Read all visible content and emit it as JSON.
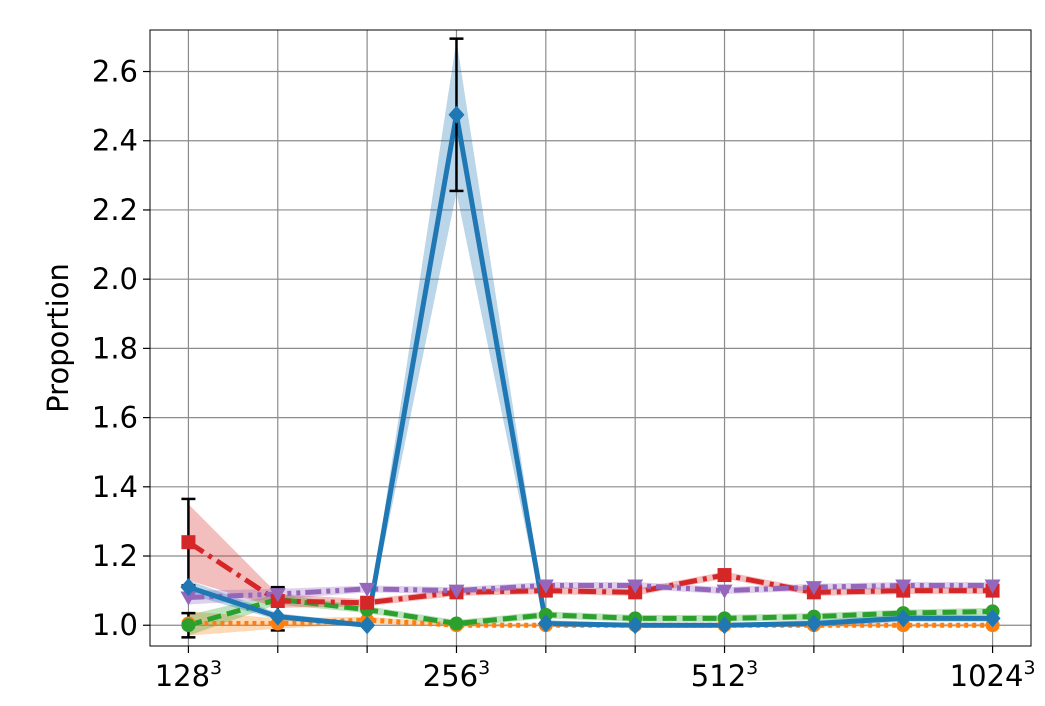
{
  "chart_data": {
    "type": "line",
    "ylabel": "Proportion",
    "ylim": [
      0.94,
      2.72
    ],
    "yticks": [
      1.0,
      1.2,
      1.4,
      1.6,
      1.8,
      2.0,
      2.2,
      2.4,
      2.6
    ],
    "ytick_labels": [
      "1.0",
      "1.2",
      "1.4",
      "1.6",
      "1.8",
      "2.0",
      "2.2",
      "2.4",
      "2.6"
    ],
    "x": [
      0,
      1,
      2,
      3,
      4,
      5,
      6,
      7,
      8,
      9
    ],
    "xlim": [
      -0.43,
      9.43
    ],
    "xticks": [
      0,
      1,
      2,
      3,
      4,
      5,
      6,
      7,
      8,
      9
    ],
    "xtick_labels": [
      {
        "base": "128",
        "exp": "3"
      },
      {
        "base": "",
        "exp": ""
      },
      {
        "base": "",
        "exp": ""
      },
      {
        "base": "256",
        "exp": "3"
      },
      {
        "base": "",
        "exp": ""
      },
      {
        "base": "",
        "exp": ""
      },
      {
        "base": "512",
        "exp": "3"
      },
      {
        "base": "",
        "exp": ""
      },
      {
        "base": "",
        "exp": ""
      },
      {
        "base": "1024",
        "exp": "3"
      }
    ],
    "grid": true,
    "series": [
      {
        "color": "#ff7f0e",
        "linestyle": "dotted",
        "marker": "circle",
        "values": [
          1.005,
          1.005,
          1.015,
          1.0,
          1.0,
          1.0,
          1.0,
          1.0,
          1.0,
          1.0
        ],
        "lower": [
          0.97,
          0.99,
          1.005,
          0.995,
          0.995,
          0.995,
          0.995,
          0.995,
          0.995,
          0.995
        ],
        "upper": [
          1.04,
          1.02,
          1.025,
          1.005,
          1.005,
          1.005,
          1.005,
          1.005,
          1.005,
          1.005
        ],
        "errorbars": [
          null,
          null,
          null,
          null,
          null,
          null,
          null,
          null,
          null,
          null
        ]
      },
      {
        "color": "#2ca02c",
        "linestyle": "dashed",
        "marker": "circle",
        "values": [
          1.0,
          1.075,
          1.045,
          1.005,
          1.03,
          1.02,
          1.02,
          1.025,
          1.035,
          1.04
        ],
        "lower": [
          0.97,
          1.06,
          1.035,
          0.995,
          1.02,
          1.01,
          1.01,
          1.015,
          1.025,
          1.03
        ],
        "upper": [
          1.03,
          1.09,
          1.055,
          1.015,
          1.04,
          1.03,
          1.03,
          1.035,
          1.045,
          1.05
        ],
        "errorbars": [
          [
            0.965,
            1.035
          ],
          null,
          null,
          null,
          null,
          null,
          null,
          null,
          null,
          null
        ]
      },
      {
        "color": "#d62728",
        "linestyle": "dashdot",
        "marker": "square",
        "values": [
          1.24,
          1.07,
          1.065,
          1.095,
          1.1,
          1.095,
          1.145,
          1.095,
          1.1,
          1.1
        ],
        "lower": [
          1.13,
          1.05,
          1.055,
          1.085,
          1.09,
          1.085,
          1.135,
          1.085,
          1.09,
          1.09
        ],
        "upper": [
          1.35,
          1.09,
          1.075,
          1.105,
          1.11,
          1.105,
          1.155,
          1.105,
          1.11,
          1.11
        ],
        "errorbars": [
          [
            1.115,
            1.365
          ],
          null,
          null,
          null,
          null,
          null,
          null,
          null,
          null,
          null
        ]
      },
      {
        "color": "#9467bd",
        "linestyle": "dashdotdot",
        "marker": "triangle-down",
        "values": [
          1.08,
          1.09,
          1.105,
          1.1,
          1.115,
          1.115,
          1.1,
          1.11,
          1.115,
          1.115
        ],
        "lower": [
          1.06,
          1.075,
          1.095,
          1.09,
          1.105,
          1.105,
          1.09,
          1.1,
          1.105,
          1.105
        ],
        "upper": [
          1.1,
          1.105,
          1.115,
          1.11,
          1.125,
          1.125,
          1.11,
          1.12,
          1.125,
          1.125
        ],
        "errorbars": [
          null,
          [
            0.985,
            1.11
          ],
          null,
          null,
          null,
          null,
          null,
          null,
          null,
          null
        ]
      },
      {
        "color": "#1f77b4",
        "linestyle": "solid",
        "marker": "diamond",
        "values": [
          1.11,
          1.025,
          1.0,
          2.475,
          1.005,
          1.0,
          1.0,
          1.005,
          1.02,
          1.02
        ],
        "lower": [
          1.09,
          1.015,
          0.995,
          2.25,
          0.995,
          0.995,
          0.995,
          0.995,
          1.01,
          1.01
        ],
        "upper": [
          1.13,
          1.035,
          1.005,
          2.69,
          1.015,
          1.005,
          1.005,
          1.015,
          1.03,
          1.03
        ],
        "errorbars": [
          null,
          null,
          null,
          [
            2.255,
            2.695
          ],
          null,
          null,
          null,
          null,
          null,
          null
        ]
      }
    ]
  }
}
